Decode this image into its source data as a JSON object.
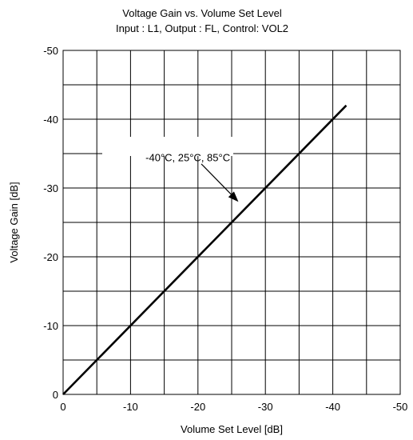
{
  "chart_data": {
    "type": "line",
    "title": "Voltage Gain vs. Volume Set Level",
    "subtitle": "Input : L1, Output : FL, Control: VOL2",
    "xlabel": "Volume Set Level [dB]",
    "ylabel": "Voltage Gain [dB]",
    "xlim": [
      0,
      -50
    ],
    "ylim": [
      0,
      -50
    ],
    "xticks": [
      0,
      -10,
      -20,
      -30,
      -40,
      -50
    ],
    "xtick_labels": [
      "0",
      "-10",
      "-20",
      "-30",
      "-40",
      "-50"
    ],
    "yticks": [
      0,
      -10,
      -20,
      -30,
      -40,
      -50
    ],
    "ytick_labels": [
      "0",
      "-10",
      "-20",
      "-30",
      "-40",
      "-50"
    ],
    "grid": true,
    "grid_step": -5,
    "series": [
      {
        "x": [
          0,
          -42
        ],
        "y": [
          0,
          -42
        ],
        "color": "#000000"
      }
    ],
    "annotation": {
      "text": "-40°C, 25°C, 85°C",
      "x": -18.5,
      "y": -34.5,
      "arrow_from": [
        -20.5,
        -33.5
      ],
      "arrow_to": [
        -26,
        -28
      ]
    }
  }
}
